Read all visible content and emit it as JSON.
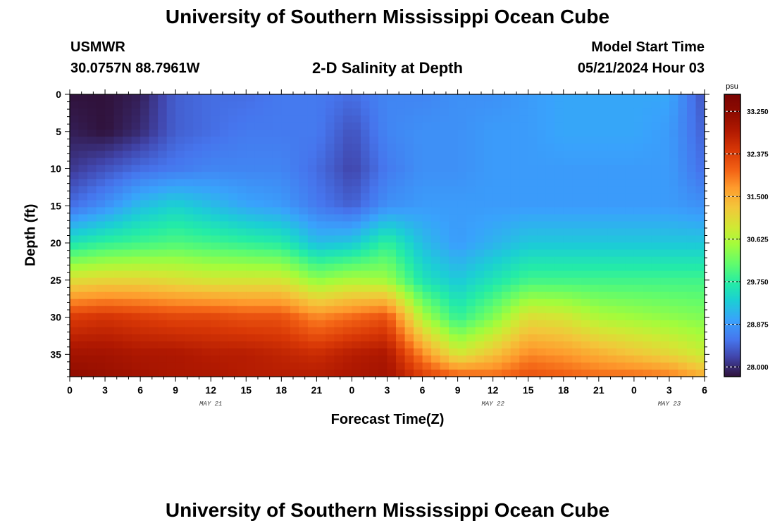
{
  "page": {
    "title": "University of Southern Mississippi Ocean Cube",
    "bottom_title": "University of Southern Mississippi Ocean Cube",
    "station": "USMWR",
    "coords": "30.0757N  88.7961W",
    "subtitle": "2-D Salinity at Depth",
    "model_label": "Model Start Time",
    "model_time": "05/21/2024 Hour 03"
  },
  "chart_data": {
    "type": "heatmap",
    "title": "2-D Salinity at Depth",
    "xlabel": "Forecast Time(Z)",
    "ylabel": "Depth (ft)",
    "x_tick_labels": [
      "0",
      "3",
      "6",
      "9",
      "12",
      "15",
      "18",
      "21",
      "0",
      "3",
      "6",
      "9",
      "12",
      "15",
      "18",
      "21",
      "0",
      "3",
      "6"
    ],
    "x_range_hours": [
      0,
      54
    ],
    "date_labels": [
      {
        "text": "MAY 21",
        "hour": 12
      },
      {
        "text": "MAY 22",
        "hour": 36
      },
      {
        "text": "MAY 23",
        "hour": 51
      }
    ],
    "y_ticks": [
      0,
      5,
      10,
      15,
      20,
      25,
      30,
      35
    ],
    "ylim": [
      0,
      38
    ],
    "y_inverted": true,
    "colorbar": {
      "unit": "psu",
      "ticks": [
        "33.250",
        "32.375",
        "31.500",
        "30.625",
        "29.750",
        "28.875",
        "28.000"
      ],
      "range": [
        27.8,
        33.6
      ]
    },
    "field_approx": {
      "description_hours": [
        0,
        3,
        6,
        9,
        12,
        15,
        18,
        21,
        24,
        27,
        30,
        33,
        36,
        39,
        42,
        45,
        48,
        51,
        54
      ],
      "depth_ft": [
        0,
        5,
        10,
        15,
        20,
        25,
        30,
        35,
        38
      ],
      "values_psu": [
        [
          27.8,
          27.8,
          27.9,
          28.4,
          28.5,
          28.5,
          28.6,
          28.6,
          28.5,
          28.7,
          28.7,
          28.8,
          28.8,
          28.9,
          29.0,
          29.0,
          29.0,
          29.0,
          28.3
        ],
        [
          27.9,
          27.8,
          28.0,
          28.4,
          28.5,
          28.6,
          28.6,
          28.6,
          28.3,
          28.7,
          28.8,
          28.8,
          28.9,
          28.9,
          29.0,
          29.0,
          29.0,
          28.9,
          28.4
        ],
        [
          28.1,
          28.3,
          28.5,
          28.6,
          28.7,
          28.7,
          28.7,
          28.5,
          28.2,
          28.6,
          28.8,
          28.8,
          28.9,
          28.9,
          28.9,
          28.9,
          28.9,
          28.9,
          28.5
        ],
        [
          28.5,
          28.8,
          29.2,
          29.4,
          29.2,
          29.0,
          28.9,
          28.6,
          28.4,
          28.8,
          28.9,
          28.9,
          28.9,
          28.9,
          28.9,
          28.9,
          28.9,
          28.9,
          28.8
        ],
        [
          29.6,
          29.8,
          29.9,
          30.0,
          29.9,
          29.8,
          29.7,
          29.2,
          29.3,
          29.8,
          29.2,
          28.9,
          29.1,
          29.3,
          29.3,
          29.3,
          29.3,
          29.3,
          29.3
        ],
        [
          31.0,
          31.1,
          31.1,
          31.0,
          30.9,
          30.9,
          30.9,
          30.4,
          30.6,
          30.5,
          29.6,
          29.3,
          29.6,
          29.9,
          29.9,
          29.9,
          29.9,
          29.9,
          29.9
        ],
        [
          32.4,
          32.5,
          32.4,
          32.3,
          32.3,
          32.2,
          32.2,
          31.8,
          32.0,
          32.2,
          30.6,
          29.8,
          30.3,
          31.0,
          30.9,
          30.6,
          30.5,
          30.4,
          30.3
        ],
        [
          33.0,
          33.0,
          32.9,
          32.9,
          32.8,
          32.8,
          32.7,
          32.6,
          32.8,
          32.9,
          31.8,
          30.9,
          31.3,
          31.8,
          31.7,
          31.5,
          31.3,
          31.1,
          30.8
        ],
        [
          33.2,
          33.1,
          33.0,
          32.9,
          32.9,
          32.8,
          32.8,
          32.8,
          32.9,
          33.0,
          32.4,
          32.1,
          32.0,
          32.2,
          32.1,
          32.0,
          32.0,
          31.9,
          31.5
        ]
      ]
    }
  }
}
